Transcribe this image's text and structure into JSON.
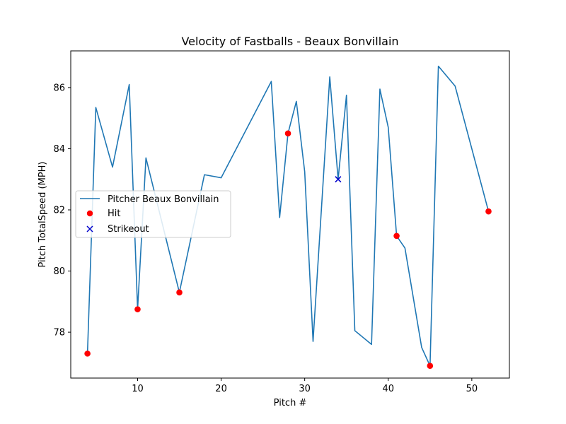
{
  "chart_data": {
    "type": "line",
    "title": "Velocity of Fastballs - Beaux Bonvillain",
    "xlabel": "Pitch #",
    "ylabel": "Pitch TotalSpeed (MPH)",
    "xlim": [
      2,
      54.5
    ],
    "ylim": [
      76.5,
      87.2
    ],
    "xticks": [
      10,
      20,
      30,
      40,
      50
    ],
    "yticks": [
      78,
      80,
      82,
      84,
      86
    ],
    "grid": false,
    "legend_position": "center-left",
    "series": [
      {
        "name": "Pitcher Beaux Bonvillain",
        "type": "line",
        "color": "#1f77b4",
        "x": [
          4,
          5,
          7,
          9,
          10,
          11,
          15,
          18,
          20,
          26,
          27,
          28,
          29,
          30,
          31,
          33,
          34,
          35,
          36,
          38,
          39,
          40,
          41,
          42,
          44,
          45,
          46,
          48,
          52
        ],
        "y": [
          77.3,
          85.35,
          83.4,
          86.1,
          78.75,
          83.7,
          79.3,
          83.15,
          83.05,
          86.2,
          81.75,
          84.5,
          85.55,
          83.25,
          77.7,
          86.35,
          83.0,
          85.75,
          78.05,
          77.6,
          85.95,
          84.7,
          81.15,
          80.75,
          77.5,
          76.9,
          86.7,
          86.05,
          81.95
        ]
      },
      {
        "name": "Hit",
        "type": "scatter",
        "marker": "circle",
        "color": "#ff0000",
        "x": [
          4,
          10,
          15,
          28,
          41,
          45,
          52
        ],
        "y": [
          77.3,
          78.75,
          79.3,
          84.5,
          81.15,
          76.9,
          81.95
        ]
      },
      {
        "name": "Strikeout",
        "type": "scatter",
        "marker": "x",
        "color": "#0000cc",
        "x": [
          34
        ],
        "y": [
          83.0
        ]
      }
    ]
  }
}
